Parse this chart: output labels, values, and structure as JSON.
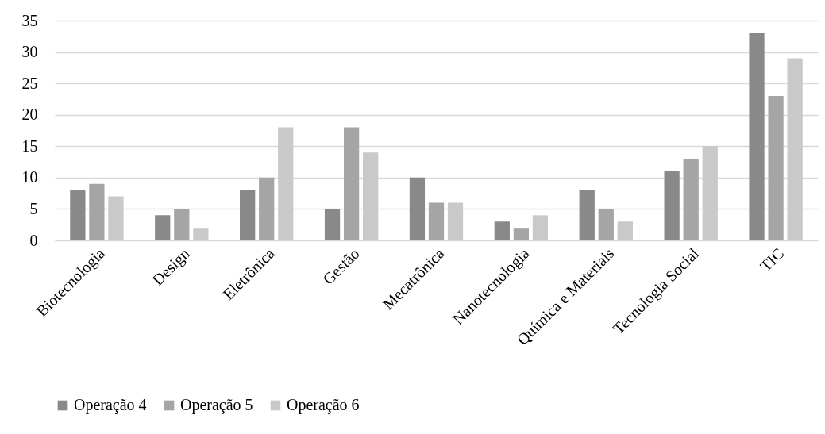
{
  "chart_data": {
    "type": "bar",
    "categories": [
      "Biotecnologia",
      "Design",
      "Eletrônica",
      "Gestão",
      "Mecatrônica",
      "Nanotecnologia",
      "Química e Materiais",
      "Tecnologia Social",
      "TIC"
    ],
    "series": [
      {
        "name": "Operação 4",
        "color": "#898989",
        "values": [
          8,
          4,
          8,
          5,
          10,
          3,
          8,
          11,
          33
        ]
      },
      {
        "name": "Operação 5",
        "color": "#a5a5a5",
        "values": [
          9,
          5,
          10,
          18,
          6,
          2,
          5,
          13,
          23
        ]
      },
      {
        "name": "Operação 6",
        "color": "#c9c9c9",
        "values": [
          7,
          2,
          18,
          14,
          6,
          4,
          3,
          15,
          29
        ]
      }
    ],
    "ylim": [
      0,
      35
    ],
    "yticks": [
      0,
      5,
      10,
      15,
      20,
      25,
      30,
      35
    ],
    "grid": "y",
    "legend": "bottom"
  }
}
